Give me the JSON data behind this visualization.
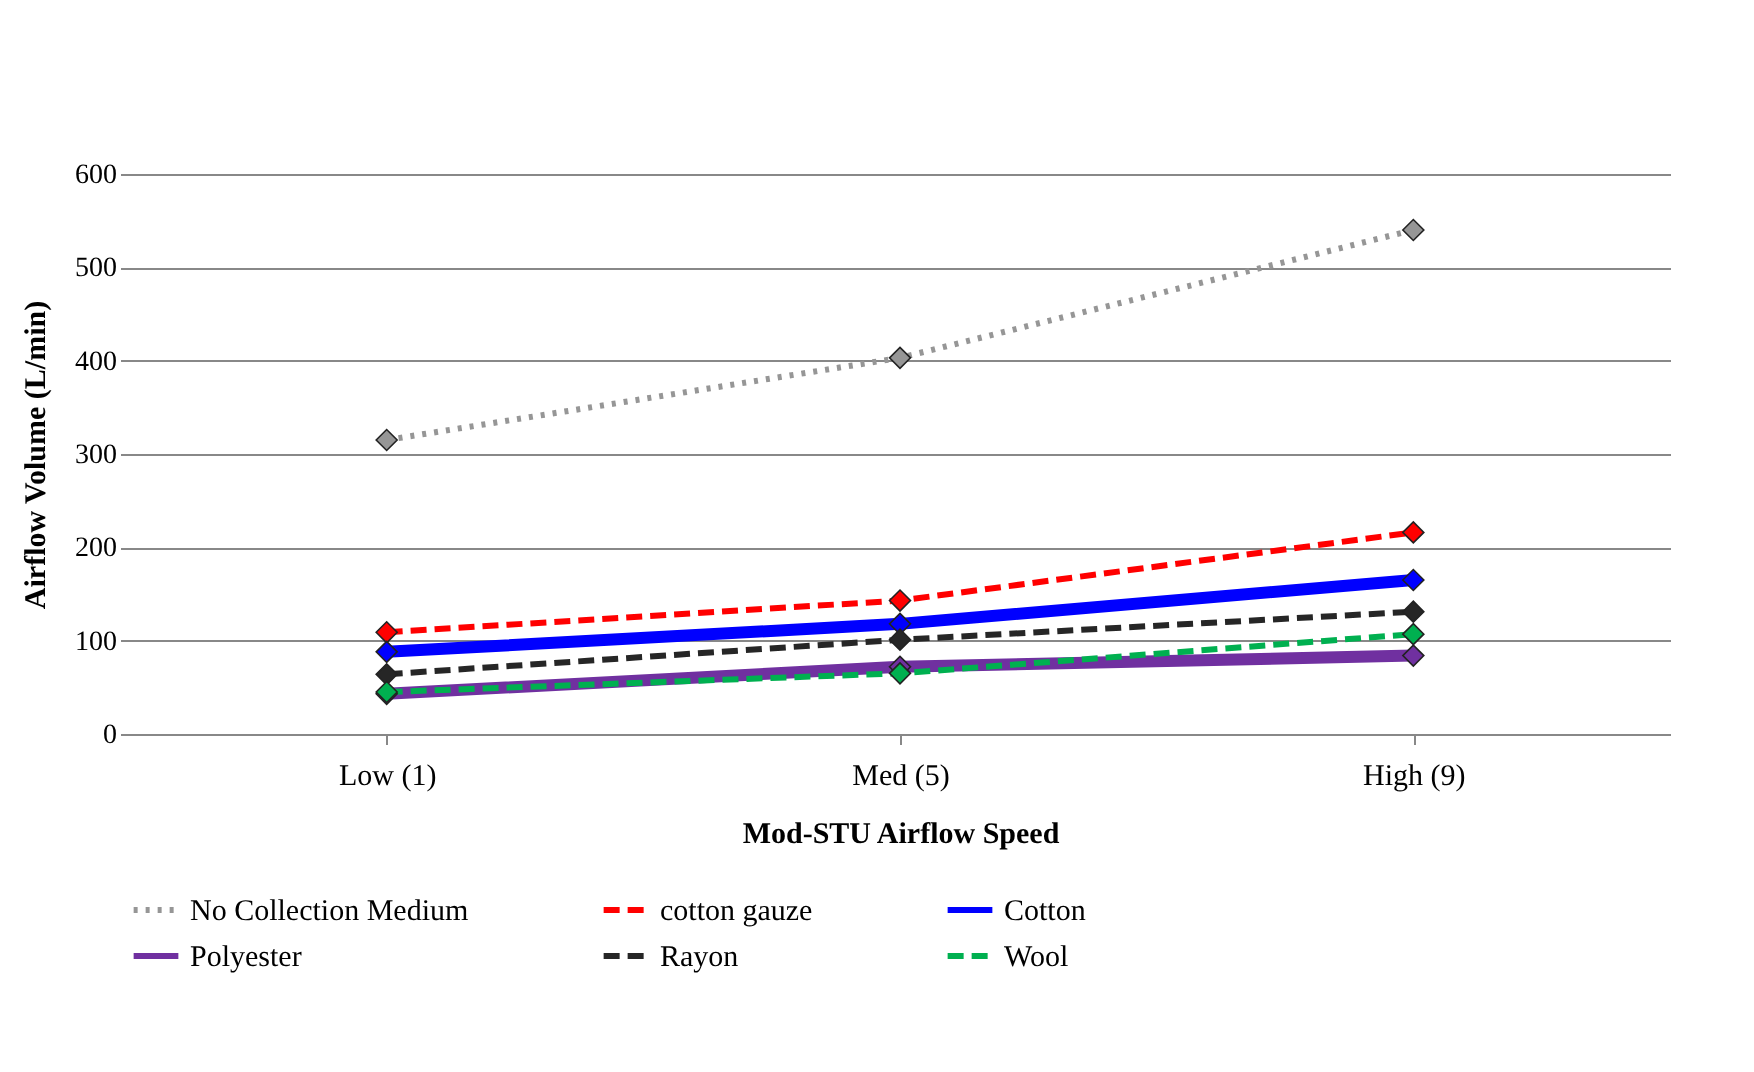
{
  "chart_data": {
    "type": "line",
    "xlabel": "Mod-STU  Airflow Speed",
    "ylabel": "Airflow  Volume  (L/min)",
    "categories": [
      "Low (1)",
      "Med (5)",
      "High (9)"
    ],
    "ylim": [
      0,
      600
    ],
    "yticks": [
      0,
      100,
      200,
      300,
      400,
      500,
      600
    ],
    "grid": "y",
    "legend": "bottom",
    "marker": "diamond",
    "series": [
      {
        "name": "No Collection Medium",
        "color": "#969696",
        "line_style": "dotted",
        "values": [
          315,
          403,
          540
        ]
      },
      {
        "name": "cotton gauze",
        "color": "#ff0000",
        "line_style": "dashed",
        "values": [
          109,
          143,
          216
        ]
      },
      {
        "name": "Cotton",
        "color": "#0000ff",
        "line_style": "solid",
        "values": [
          88,
          118,
          165
        ]
      },
      {
        "name": "Polyester",
        "color": "#7030a0",
        "line_style": "solid",
        "values": [
          43,
          72,
          84
        ]
      },
      {
        "name": "Rayon",
        "color": "#262626",
        "line_style": "dashed",
        "values": [
          64,
          101,
          131
        ]
      },
      {
        "name": "Wool",
        "color": "#00b050",
        "line_style": "dashed",
        "values": [
          45,
          65,
          107
        ]
      }
    ]
  }
}
